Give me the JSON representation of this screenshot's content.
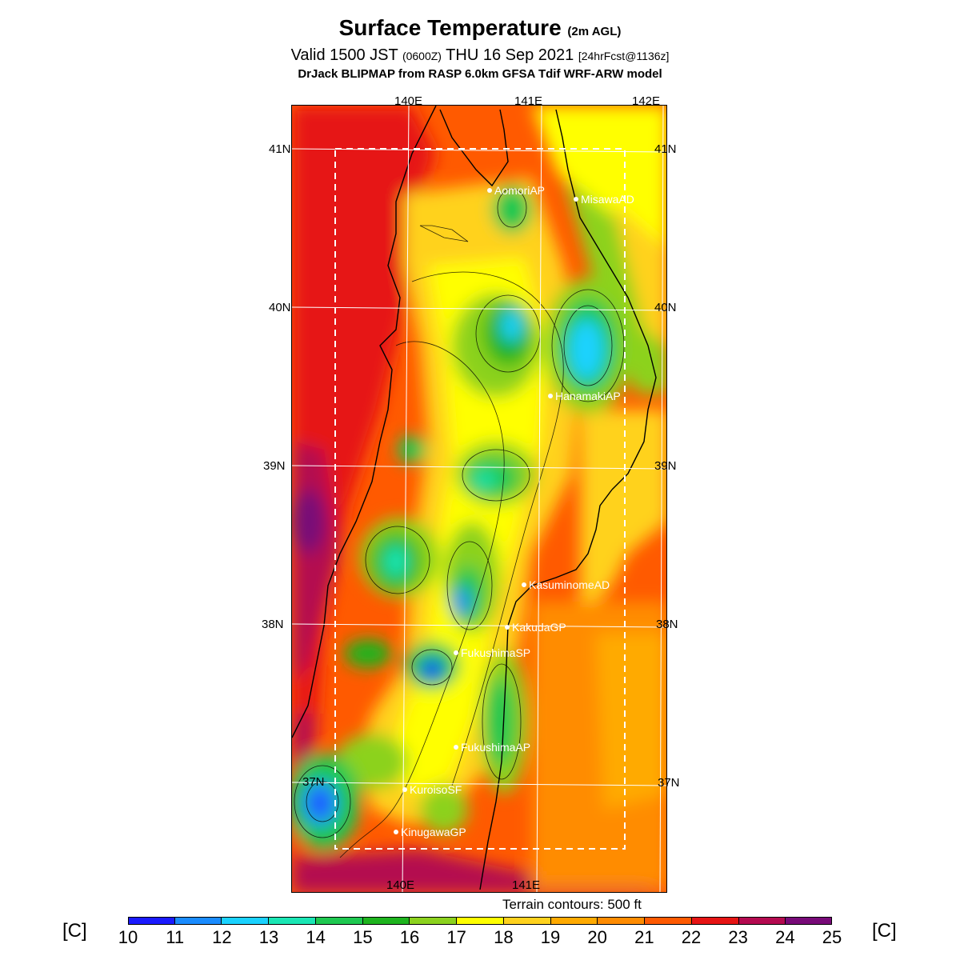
{
  "title": {
    "main": "Surface Temperature",
    "main_note": "(2m AGL)",
    "valid_prefix": "Valid 1500 JST",
    "valid_zulu": "(0600Z)",
    "valid_date": "THU 16 Sep 2021",
    "forecast": "[24hrFcst@1136z]",
    "model": "DrJack BLIPMAP from RASP 6.0km GFSA Tdif WRF-ARW model"
  },
  "map": {
    "lon_labels_top": [
      "140E",
      "141E",
      "142E"
    ],
    "lon_labels_bottom": [
      "140E",
      "141E"
    ],
    "lat_labels_left": [
      "41N",
      "40N",
      "39N",
      "38N",
      "37N"
    ],
    "lat_labels_right": [
      "41N",
      "40N",
      "39N",
      "38N",
      "37N"
    ],
    "stations": [
      "AomoriAP",
      "MisawaAD",
      "HanamakiAP",
      "KasuminomeAD",
      "KakudaGP",
      "FukushimaSP",
      "FukushimaAP",
      "KuroisoSF",
      "KinugawaGP"
    ],
    "terrain_note": "Terrain contours: 500 ft"
  },
  "colorbar": {
    "unit_left": "[C]",
    "unit_right": "[C]",
    "ticks": [
      "10",
      "11",
      "12",
      "13",
      "14",
      "15",
      "16",
      "17",
      "18",
      "19",
      "20",
      "21",
      "22",
      "23",
      "24",
      "25"
    ],
    "colors": [
      "#1a1aff",
      "#1a8cff",
      "#1ad2ff",
      "#1ae6b4",
      "#1ec850",
      "#1eb41e",
      "#8cd21e",
      "#ffff00",
      "#ffd21e",
      "#ffaa00",
      "#ff8c00",
      "#ff5a00",
      "#e61414",
      "#b40a50",
      "#780a78"
    ]
  }
}
